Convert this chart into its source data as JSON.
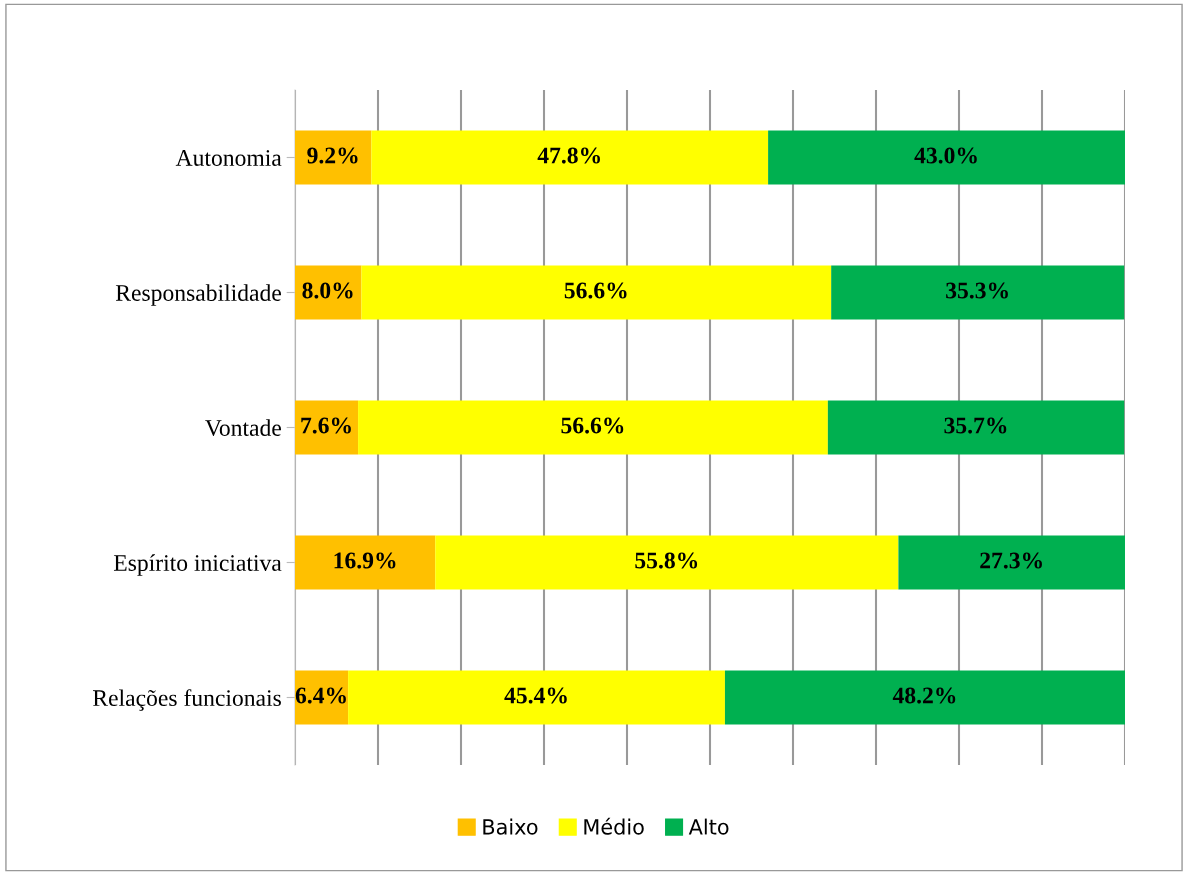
{
  "chart_data": {
    "type": "bar",
    "orientation": "horizontal",
    "stacked": true,
    "categories": [
      "Autonomia",
      "Responsabilidade",
      "Vontade",
      "Espírito iniciativa",
      "Relações funcionais"
    ],
    "series": [
      {
        "name": "Baixo",
        "color": "#ffc000",
        "values": [
          9.2,
          8.0,
          7.6,
          16.9,
          6.4
        ],
        "value_labels": [
          "9.2%",
          "8.0%",
          "7.6%",
          "16.9%",
          "6.4%"
        ]
      },
      {
        "name": "Médio",
        "color": "#ffff00",
        "values": [
          47.8,
          56.6,
          56.6,
          55.8,
          45.4
        ],
        "value_labels": [
          "47.8%",
          "56.6%",
          "56.6%",
          "55.8%",
          "45.4%"
        ]
      },
      {
        "name": "Alto",
        "color": "#00b050",
        "values": [
          43.0,
          35.3,
          35.7,
          27.3,
          48.2
        ],
        "value_labels": [
          "43.0%",
          "35.3%",
          "35.7%",
          "27.3%",
          "48.2%"
        ]
      }
    ],
    "tick_labels": "y",
    "grid": "x",
    "legend": "bottom"
  }
}
